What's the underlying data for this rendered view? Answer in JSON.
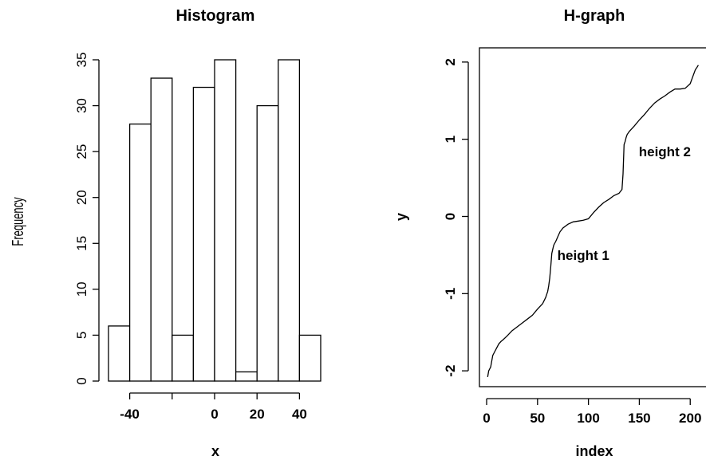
{
  "chart_data": [
    {
      "type": "bar",
      "title": "Histogram",
      "xlabel": "x",
      "ylabel": "Frequency",
      "bins": [
        {
          "x0": -50,
          "x1": -40,
          "count": 6
        },
        {
          "x0": -40,
          "x1": -30,
          "count": 28
        },
        {
          "x0": -30,
          "x1": -20,
          "count": 33
        },
        {
          "x0": -20,
          "x1": -10,
          "count": 5
        },
        {
          "x0": -10,
          "x1": 0,
          "count": 32
        },
        {
          "x0": 0,
          "x1": 10,
          "count": 35
        },
        {
          "x0": 10,
          "x1": 20,
          "count": 1
        },
        {
          "x0": 20,
          "x1": 30,
          "count": 30
        },
        {
          "x0": 30,
          "x1": 40,
          "count": 35
        },
        {
          "x0": 40,
          "x1": 50,
          "count": 5
        }
      ],
      "xticks": [
        -40,
        -20,
        0,
        20,
        40
      ],
      "xtick_labels": [
        "-40",
        "",
        "0",
        "20",
        "40"
      ],
      "yticks": [
        0,
        5,
        10,
        15,
        20,
        25,
        30,
        35
      ],
      "xlim": [
        -50,
        50
      ],
      "ylim": [
        0,
        35
      ],
      "grid": false
    },
    {
      "type": "line",
      "title": "H-graph",
      "xlabel": "index",
      "ylabel": "y",
      "x": [
        1,
        2,
        4,
        6,
        8,
        10,
        12,
        14,
        16,
        20,
        25,
        30,
        35,
        40,
        45,
        50,
        55,
        58,
        60,
        61,
        62,
        63,
        64,
        65,
        66,
        68,
        70,
        72,
        75,
        80,
        85,
        90,
        95,
        100,
        105,
        110,
        115,
        120,
        125,
        130,
        133,
        134,
        135,
        136,
        137,
        138,
        140,
        145,
        150,
        155,
        160,
        165,
        170,
        175,
        180,
        185,
        190,
        195,
        200,
        203,
        205,
        207,
        208
      ],
      "y": [
        -2.08,
        -2.0,
        -1.95,
        -1.8,
        -1.75,
        -1.7,
        -1.65,
        -1.62,
        -1.6,
        -1.55,
        -1.48,
        -1.43,
        -1.38,
        -1.33,
        -1.28,
        -1.2,
        -1.13,
        -1.05,
        -0.97,
        -0.9,
        -0.8,
        -0.65,
        -0.48,
        -0.42,
        -0.37,
        -0.32,
        -0.26,
        -0.2,
        -0.15,
        -0.1,
        -0.07,
        -0.06,
        -0.05,
        -0.03,
        0.05,
        0.12,
        0.18,
        0.22,
        0.27,
        0.3,
        0.35,
        0.55,
        0.93,
        0.97,
        1.02,
        1.06,
        1.1,
        1.17,
        1.25,
        1.32,
        1.4,
        1.47,
        1.52,
        1.56,
        1.61,
        1.65,
        1.65,
        1.66,
        1.72,
        1.83,
        1.9,
        1.94,
        1.96
      ],
      "xticks": [
        0,
        50,
        100,
        150,
        200
      ],
      "yticks": [
        -2,
        -1,
        0,
        1,
        2
      ],
      "xlim": [
        -7,
        220
      ],
      "ylim": [
        -2.15,
        2.15
      ],
      "annotations": [
        {
          "text": "height 1",
          "x": 95,
          "y": -0.5
        },
        {
          "text": "height 2",
          "x": 175,
          "y": 0.84
        }
      ],
      "grid": false
    }
  ]
}
